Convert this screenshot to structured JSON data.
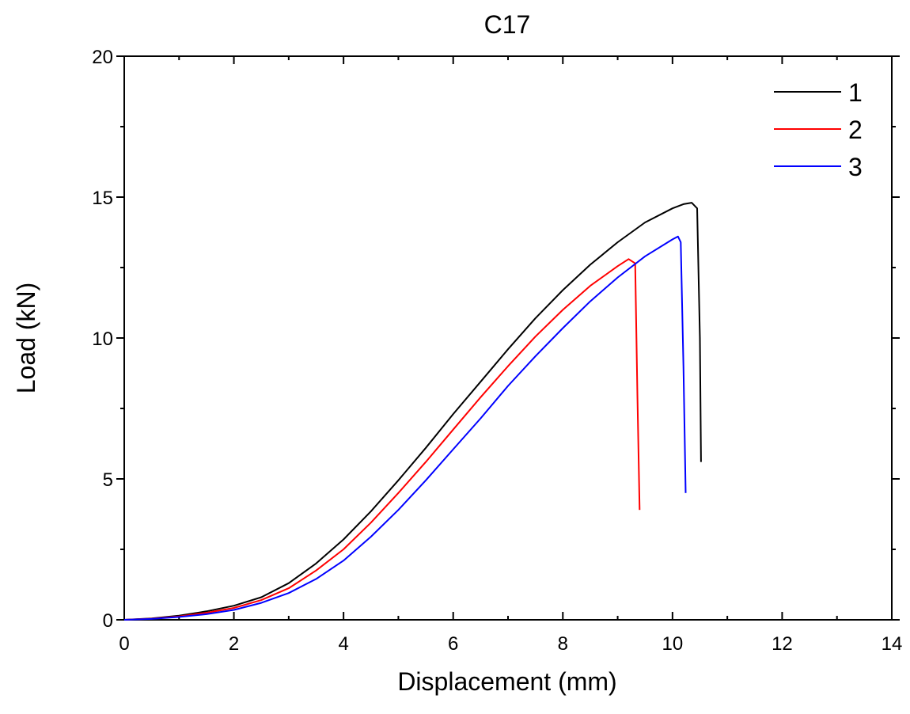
{
  "chart_data": {
    "type": "line",
    "title": "C17",
    "xlabel": "Displacement (mm)",
    "ylabel": "Load (kN)",
    "xlim": [
      0,
      14
    ],
    "ylim": [
      0,
      20
    ],
    "xticks": [
      0,
      2,
      4,
      6,
      8,
      10,
      12,
      14
    ],
    "yticks": [
      0,
      5,
      10,
      15,
      20
    ],
    "grid": false,
    "legend_position": "top-right",
    "series": [
      {
        "name": "1",
        "color": "#000000",
        "x": [
          0,
          0.5,
          1,
          1.5,
          2,
          2.5,
          3,
          3.5,
          4,
          4.5,
          5,
          5.5,
          6,
          6.5,
          7,
          7.5,
          8,
          8.5,
          9,
          9.5,
          10,
          10.2,
          10.35,
          10.45,
          10.5,
          10.52
        ],
        "y": [
          0,
          0.05,
          0.15,
          0.3,
          0.5,
          0.8,
          1.3,
          2.0,
          2.85,
          3.85,
          4.95,
          6.1,
          7.3,
          8.45,
          9.6,
          10.7,
          11.7,
          12.6,
          13.4,
          14.1,
          14.6,
          14.75,
          14.8,
          14.6,
          10.0,
          5.6
        ]
      },
      {
        "name": "2",
        "color": "#ff0000",
        "x": [
          0,
          0.5,
          1,
          1.5,
          2,
          2.5,
          3,
          3.5,
          4,
          4.5,
          5,
          5.5,
          6,
          6.5,
          7,
          7.5,
          8,
          8.5,
          9,
          9.2,
          9.32,
          9.36,
          9.4
        ],
        "y": [
          0,
          0.04,
          0.12,
          0.25,
          0.42,
          0.7,
          1.12,
          1.75,
          2.5,
          3.45,
          4.5,
          5.6,
          6.75,
          7.9,
          9.0,
          10.05,
          11.0,
          11.85,
          12.55,
          12.8,
          12.65,
          8.0,
          3.9
        ]
      },
      {
        "name": "3",
        "color": "#0000ff",
        "x": [
          0,
          0.5,
          1,
          1.5,
          2,
          2.5,
          3,
          3.5,
          4,
          4.5,
          5,
          5.5,
          6,
          6.5,
          7,
          7.5,
          8,
          8.5,
          9,
          9.5,
          10,
          10.1,
          10.15,
          10.2,
          10.24
        ],
        "y": [
          0,
          0.03,
          0.1,
          0.2,
          0.35,
          0.6,
          0.95,
          1.45,
          2.1,
          2.95,
          3.9,
          4.95,
          6.05,
          7.15,
          8.3,
          9.35,
          10.35,
          11.3,
          12.15,
          12.9,
          13.5,
          13.6,
          13.4,
          9.0,
          4.5
        ]
      }
    ]
  }
}
